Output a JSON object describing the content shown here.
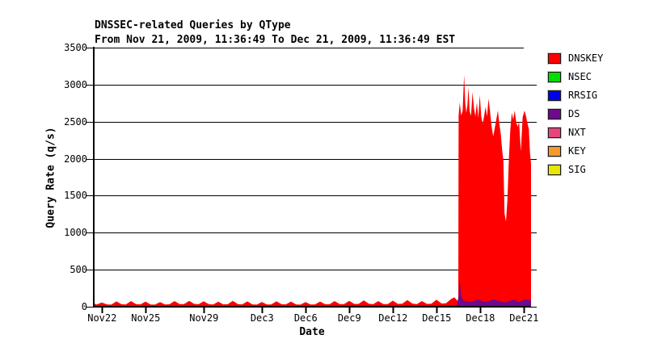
{
  "chart_data": {
    "type": "area",
    "title": "DNSSEC-related Queries by QType",
    "subtitle": "From Nov 21, 2009, 11:36:49 To Dec 21, 2009, 11:36:49 EST",
    "xlabel": "Date",
    "ylabel": "Query Rate (q/s)",
    "x_unit": "days since Nov 21, 2009 11:36:49 EST",
    "x_range": [
      0,
      30
    ],
    "ylim": [
      0,
      3500
    ],
    "grid": "horizontal",
    "legend_position": "right",
    "frame_color": "#000000",
    "background_color": "#ffffff",
    "y_ticks": [
      3500,
      3000,
      2500,
      2000,
      1500,
      1000,
      500,
      0
    ],
    "x_ticks": [
      {
        "label": "Nov22",
        "day": 0.516
      },
      {
        "label": "Nov25",
        "day": 3.516
      },
      {
        "label": "Nov29",
        "day": 7.516
      },
      {
        "label": "Dec3",
        "day": 11.516
      },
      {
        "label": "Dec6",
        "day": 14.516
      },
      {
        "label": "Dec9",
        "day": 17.516
      },
      {
        "label": "Dec12",
        "day": 20.516
      },
      {
        "label": "Dec15",
        "day": 23.516
      },
      {
        "label": "Dec18",
        "day": 26.516
      },
      {
        "label": "Dec21",
        "day": 29.516
      }
    ],
    "legend": [
      {
        "label": "DNSKEY",
        "color": "#FF0000"
      },
      {
        "label": "NSEC",
        "color": "#00DD00"
      },
      {
        "label": "RRSIG",
        "color": "#0000F0"
      },
      {
        "label": "DS",
        "color": "#6E0A8E"
      },
      {
        "label": "NXT",
        "color": "#E8467A"
      },
      {
        "label": "KEY",
        "color": "#F5992E"
      },
      {
        "label": "SIG",
        "color": "#E6E600"
      }
    ],
    "stacking_note": "areas painted in listed order; each points list is [day, q/s] of the visible upper boundary of that colored band",
    "areas": [
      {
        "name": "DNSKEY",
        "color": "#FF0000",
        "points": [
          [
            0,
            40
          ],
          [
            0.15,
            30
          ],
          [
            0.5,
            58
          ],
          [
            0.85,
            32
          ],
          [
            1.15,
            28
          ],
          [
            1.5,
            72
          ],
          [
            1.85,
            34
          ],
          [
            2.15,
            30
          ],
          [
            2.5,
            76
          ],
          [
            2.85,
            36
          ],
          [
            3.15,
            32
          ],
          [
            3.5,
            70
          ],
          [
            3.85,
            30
          ],
          [
            4.15,
            28
          ],
          [
            4.5,
            62
          ],
          [
            4.85,
            30
          ],
          [
            5.15,
            34
          ],
          [
            5.5,
            76
          ],
          [
            5.85,
            36
          ],
          [
            6.15,
            36
          ],
          [
            6.5,
            80
          ],
          [
            6.85,
            38
          ],
          [
            7.15,
            34
          ],
          [
            7.5,
            74
          ],
          [
            7.85,
            34
          ],
          [
            8.15,
            30
          ],
          [
            8.5,
            68
          ],
          [
            8.85,
            32
          ],
          [
            9.15,
            34
          ],
          [
            9.5,
            78
          ],
          [
            9.85,
            36
          ],
          [
            10.15,
            32
          ],
          [
            10.5,
            72
          ],
          [
            10.85,
            32
          ],
          [
            11.15,
            28
          ],
          [
            11.5,
            64
          ],
          [
            11.85,
            30
          ],
          [
            12.15,
            32
          ],
          [
            12.5,
            74
          ],
          [
            12.85,
            34
          ],
          [
            13.15,
            32
          ],
          [
            13.5,
            70
          ],
          [
            13.85,
            32
          ],
          [
            14.15,
            28
          ],
          [
            14.5,
            62
          ],
          [
            14.85,
            30
          ],
          [
            15.15,
            32
          ],
          [
            15.5,
            70
          ],
          [
            15.85,
            34
          ],
          [
            16.15,
            34
          ],
          [
            16.5,
            76
          ],
          [
            16.85,
            36
          ],
          [
            17.15,
            36
          ],
          [
            17.5,
            80
          ],
          [
            17.85,
            38
          ],
          [
            18.15,
            38
          ],
          [
            18.5,
            86
          ],
          [
            18.85,
            40
          ],
          [
            19.15,
            34
          ],
          [
            19.5,
            76
          ],
          [
            19.85,
            36
          ],
          [
            20.15,
            36
          ],
          [
            20.5,
            82
          ],
          [
            20.85,
            38
          ],
          [
            21.15,
            40
          ],
          [
            21.5,
            90
          ],
          [
            21.85,
            42
          ],
          [
            22.15,
            36
          ],
          [
            22.5,
            76
          ],
          [
            22.85,
            38
          ],
          [
            23.15,
            40
          ],
          [
            23.5,
            96
          ],
          [
            23.85,
            44
          ],
          [
            24.15,
            46
          ],
          [
            24.5,
            104
          ],
          [
            24.72,
            126
          ],
          [
            24.9,
            92
          ],
          [
            25.0,
            64
          ],
          [
            25.02,
            2580
          ],
          [
            25.1,
            2760
          ],
          [
            25.2,
            2580
          ],
          [
            25.3,
            2650
          ],
          [
            25.4,
            3130
          ],
          [
            25.48,
            2750
          ],
          [
            25.55,
            2620
          ],
          [
            25.63,
            2720
          ],
          [
            25.7,
            2970
          ],
          [
            25.78,
            2640
          ],
          [
            25.88,
            2580
          ],
          [
            25.98,
            2900
          ],
          [
            26.08,
            2680
          ],
          [
            26.18,
            2570
          ],
          [
            26.28,
            2760
          ],
          [
            26.38,
            2550
          ],
          [
            26.48,
            2860
          ],
          [
            26.58,
            2570
          ],
          [
            26.68,
            2470
          ],
          [
            26.78,
            2580
          ],
          [
            26.88,
            2700
          ],
          [
            26.98,
            2570
          ],
          [
            27.08,
            2810
          ],
          [
            27.18,
            2650
          ],
          [
            27.28,
            2450
          ],
          [
            27.4,
            2300
          ],
          [
            27.52,
            2430
          ],
          [
            27.62,
            2540
          ],
          [
            27.72,
            2650
          ],
          [
            27.82,
            2470
          ],
          [
            27.92,
            2330
          ],
          [
            28.02,
            2100
          ],
          [
            28.1,
            1980
          ],
          [
            28.18,
            1260
          ],
          [
            28.28,
            1150
          ],
          [
            28.38,
            1450
          ],
          [
            28.48,
            2000
          ],
          [
            28.58,
            2400
          ],
          [
            28.68,
            2620
          ],
          [
            28.78,
            2530
          ],
          [
            28.88,
            2650
          ],
          [
            28.98,
            2500
          ],
          [
            29.08,
            2430
          ],
          [
            29.18,
            2500
          ],
          [
            29.3,
            2100
          ],
          [
            29.42,
            2560
          ],
          [
            29.55,
            2650
          ],
          [
            29.65,
            2580
          ],
          [
            29.75,
            2480
          ],
          [
            29.85,
            2400
          ],
          [
            29.93,
            2080
          ],
          [
            30,
            1930
          ]
        ]
      },
      {
        "name": "DS",
        "color": "#6E0A8E",
        "points": [
          [
            0,
            10
          ],
          [
            3,
            11
          ],
          [
            6,
            12
          ],
          [
            9,
            11
          ],
          [
            12,
            12
          ],
          [
            15,
            11
          ],
          [
            18,
            13
          ],
          [
            21,
            13
          ],
          [
            23.5,
            14
          ],
          [
            24.5,
            16
          ],
          [
            24.9,
            20
          ],
          [
            25.02,
            150
          ],
          [
            25.08,
            380
          ],
          [
            25.13,
            300
          ],
          [
            25.18,
            160
          ],
          [
            25.28,
            100
          ],
          [
            25.4,
            82
          ],
          [
            25.6,
            72
          ],
          [
            25.9,
            68
          ],
          [
            26.1,
            78
          ],
          [
            26.3,
            95
          ],
          [
            26.5,
            88
          ],
          [
            26.7,
            72
          ],
          [
            26.9,
            66
          ],
          [
            27.1,
            80
          ],
          [
            27.3,
            92
          ],
          [
            27.5,
            96
          ],
          [
            27.7,
            84
          ],
          [
            27.9,
            72
          ],
          [
            28.1,
            64
          ],
          [
            28.3,
            60
          ],
          [
            28.5,
            76
          ],
          [
            28.7,
            92
          ],
          [
            28.9,
            96
          ],
          [
            29.05,
            72
          ],
          [
            29.2,
            66
          ],
          [
            29.35,
            84
          ],
          [
            29.5,
            92
          ],
          [
            29.65,
            96
          ],
          [
            29.8,
            90
          ],
          [
            30,
            86
          ]
        ]
      },
      {
        "name": "NSEC",
        "color": "#00DD00",
        "points": [
          [
            0,
            0
          ],
          [
            21.2,
            0
          ],
          [
            21.3,
            12
          ],
          [
            21.4,
            0
          ],
          [
            23.4,
            0
          ],
          [
            23.5,
            14
          ],
          [
            23.6,
            0
          ],
          [
            24.7,
            0
          ],
          [
            24.8,
            16
          ],
          [
            24.9,
            0
          ],
          [
            25.2,
            0
          ],
          [
            25.28,
            20
          ],
          [
            25.36,
            0
          ],
          [
            30,
            0
          ]
        ]
      }
    ]
  }
}
